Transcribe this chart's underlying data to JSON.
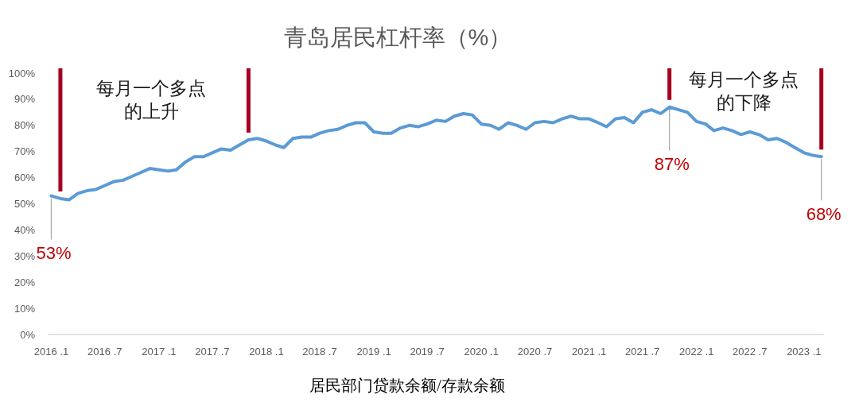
{
  "chart_data": {
    "type": "line",
    "title": "青岛居民杠杆率（%）",
    "xlabel": "居民部门贷款余额/存款余额",
    "color": "#5b9bd5",
    "x": [
      "2016-01",
      "2016-02",
      "2016-03",
      "2016-04",
      "2016-05",
      "2016-06",
      "2016-07",
      "2016-08",
      "2016-09",
      "2016-10",
      "2016-11",
      "2016-12",
      "2017-01",
      "2017-02",
      "2017-03",
      "2017-04",
      "2017-05",
      "2017-06",
      "2017-07",
      "2017-08",
      "2017-09",
      "2017-10",
      "2017-11",
      "2017-12",
      "2018-01",
      "2018-02",
      "2018-03",
      "2018-04",
      "2018-05",
      "2018-06",
      "2018-07",
      "2018-08",
      "2018-09",
      "2018-10",
      "2018-11",
      "2018-12",
      "2019-01",
      "2019-02",
      "2019-03",
      "2019-04",
      "2019-05",
      "2019-06",
      "2019-07",
      "2019-08",
      "2019-09",
      "2019-10",
      "2019-11",
      "2019-12",
      "2020-01",
      "2020-02",
      "2020-03",
      "2020-04",
      "2020-05",
      "2020-06",
      "2020-07",
      "2020-08",
      "2020-09",
      "2020-10",
      "2020-11",
      "2020-12",
      "2021-01",
      "2021-02",
      "2021-03",
      "2021-04",
      "2021-05",
      "2021-06",
      "2021-07",
      "2021-08",
      "2021-09",
      "2021-10",
      "2021-11",
      "2021-12",
      "2022-01",
      "2022-02",
      "2022-03",
      "2022-04",
      "2022-05",
      "2022-06",
      "2022-07",
      "2022-08",
      "2022-09",
      "2022-10",
      "2022-11",
      "2022-12",
      "2023-01",
      "2023-02",
      "2023-03"
    ],
    "values": [
      53,
      52,
      51.5,
      54,
      55,
      55.5,
      57,
      58.5,
      59,
      60.5,
      62,
      63.5,
      63,
      62.5,
      63,
      66,
      68,
      68,
      69.5,
      71,
      70.5,
      72.5,
      74.5,
      75,
      74,
      72.5,
      71.5,
      75,
      75.5,
      75.5,
      77,
      78,
      78.5,
      80,
      81,
      81,
      77.5,
      77,
      77,
      79,
      80,
      79.5,
      80.5,
      82,
      81.5,
      83.5,
      84.5,
      84,
      80.5,
      80,
      78.5,
      81,
      80,
      78.5,
      81,
      81.5,
      81,
      82.5,
      83.5,
      82.5,
      82.5,
      81,
      79.5,
      82.5,
      83,
      81,
      85,
      86,
      84.5,
      87,
      86,
      85,
      81.5,
      80.5,
      78,
      79,
      78,
      76.5,
      77.5,
      76.5,
      74.5,
      75,
      73.5,
      71.5,
      69.5,
      68.5,
      68
    ],
    "value_labels": [
      "53%",
      null,
      null,
      null,
      null,
      null,
      null,
      null,
      null,
      null,
      null,
      null,
      null,
      null,
      null,
      null,
      null,
      null,
      null,
      null,
      null,
      null,
      null,
      null,
      null,
      null,
      null,
      null,
      null,
      null,
      null,
      null,
      null,
      null,
      null,
      null,
      null,
      null,
      null,
      null,
      null,
      null,
      null,
      null,
      null,
      null,
      null,
      null,
      null,
      null,
      null,
      null,
      null,
      null,
      null,
      null,
      null,
      null,
      null,
      null,
      null,
      null,
      null,
      null,
      null,
      null,
      null,
      null,
      null,
      "87%",
      null,
      null,
      null,
      null,
      null,
      null,
      null,
      null,
      null,
      null,
      null,
      null,
      null,
      null,
      null,
      null,
      "68%"
    ],
    "xlim": [
      "2015-12-20",
      "2023-03-10"
    ],
    "xticks": [
      {
        "value": "2016-01",
        "label": "2016 .1"
      },
      {
        "value": "2016-07",
        "label": "2016 .7"
      },
      {
        "value": "2017-01",
        "label": "2017 .1"
      },
      {
        "value": "2017-07",
        "label": "2017 .7"
      },
      {
        "value": "2018-01",
        "label": "2018 .1"
      },
      {
        "value": "2018-07",
        "label": "2018 .7"
      },
      {
        "value": "2019-01",
        "label": "2019 .1"
      },
      {
        "value": "2019-07",
        "label": "2019 .7"
      },
      {
        "value": "2020-01",
        "label": "2020 .1"
      },
      {
        "value": "2020-07",
        "label": "2020 .7"
      },
      {
        "value": "2021-01",
        "label": "2021 .1"
      },
      {
        "value": "2021-07",
        "label": "2021 .7"
      },
      {
        "value": "2022-01",
        "label": "2022 .1"
      },
      {
        "value": "2022-07",
        "label": "2022 .7"
      },
      {
        "value": "2023-01",
        "label": "2023 .1"
      }
    ],
    "ylim": [
      0,
      100
    ],
    "yticks": [
      {
        "value": 0,
        "label": "0%"
      },
      {
        "value": 10,
        "label": "10%"
      },
      {
        "value": 20,
        "label": "20%"
      },
      {
        "value": 30,
        "label": "30%"
      },
      {
        "value": 40,
        "label": "40%"
      },
      {
        "value": 50,
        "label": "50%"
      },
      {
        "value": 60,
        "label": "60%"
      },
      {
        "value": 70,
        "label": "70%"
      },
      {
        "value": 80,
        "label": "80%"
      },
      {
        "value": 90,
        "label": "90%"
      },
      {
        "value": 100,
        "label": "100%"
      }
    ],
    "ref_lines": [
      {
        "axis": "x",
        "value": "2016-02",
        "color": "#a50021"
      },
      {
        "axis": "x",
        "value": "2017-11",
        "color": "#a50021"
      },
      {
        "axis": "x",
        "value": "2021-10",
        "color": "#a50021"
      },
      {
        "axis": "x",
        "value": "2023-03",
        "color": "#a50021"
      }
    ],
    "annotations": [
      "每月一个多点的上升",
      "每月一个多点的下降"
    ]
  }
}
